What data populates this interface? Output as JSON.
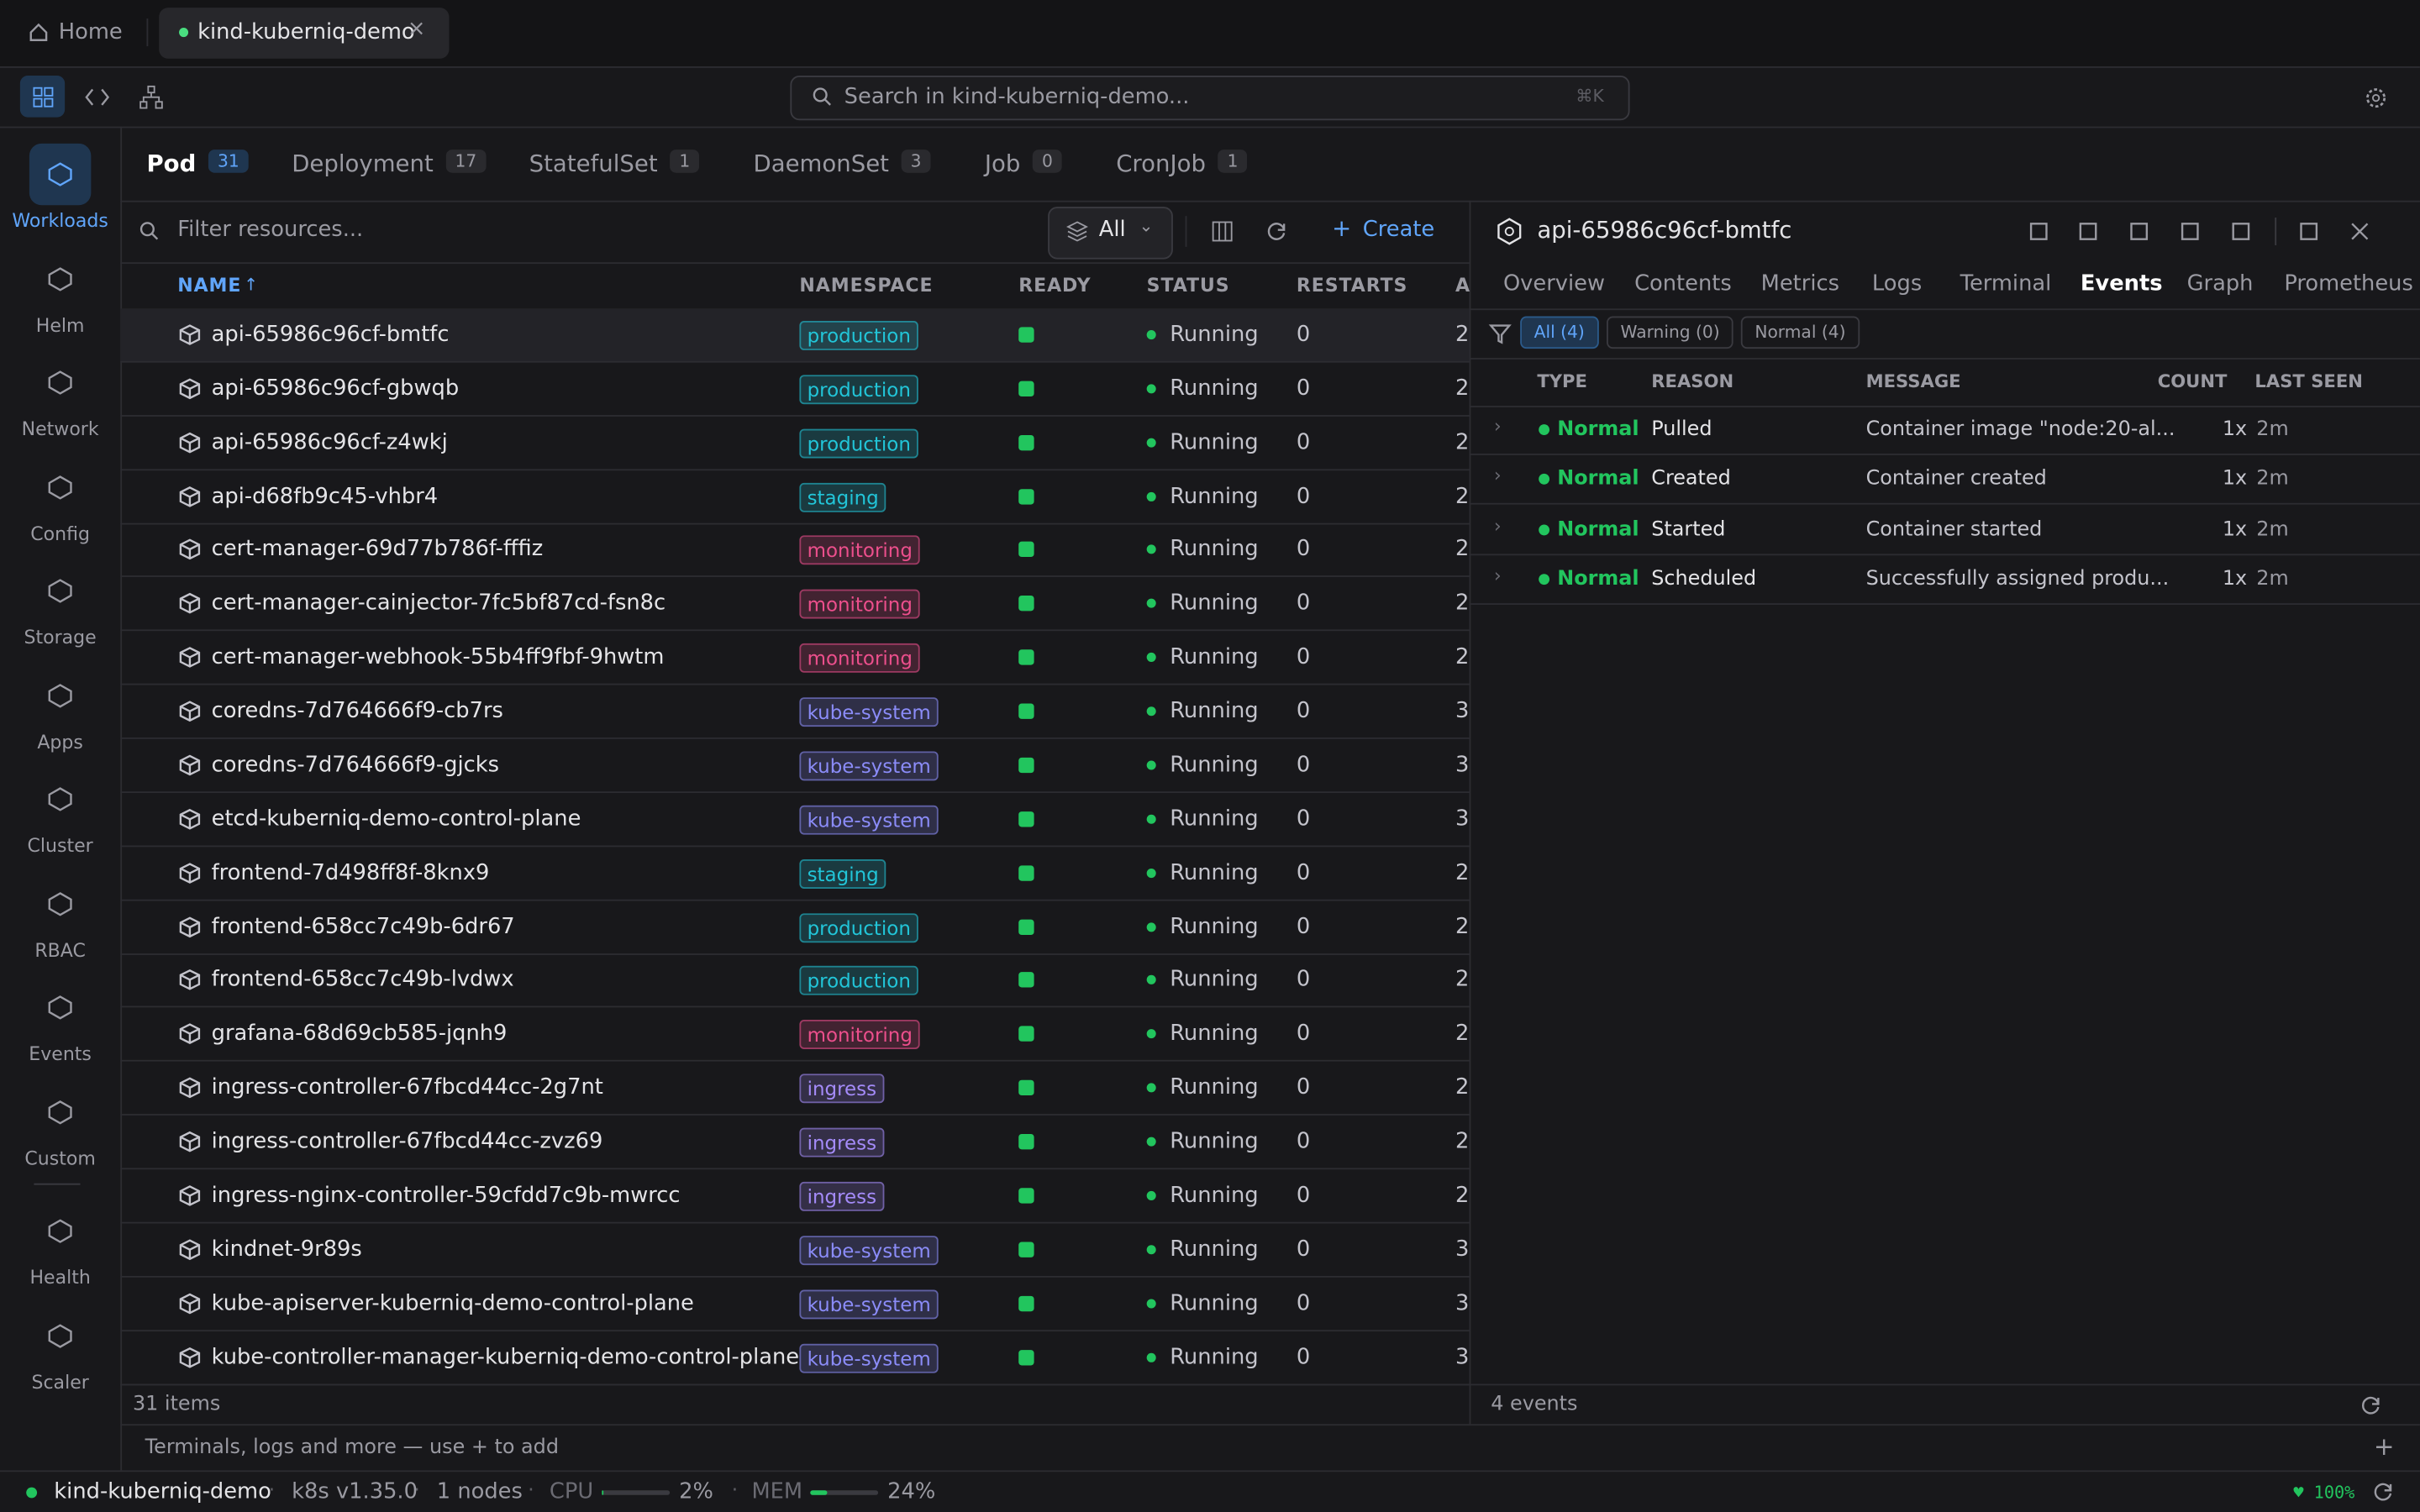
{
  "window_tabs": {
    "home": "Home",
    "active": "kind-kuberniq-demo"
  },
  "search": {
    "placeholder": "Search in kind-kuberniq-demo...",
    "shortcut": "⌘K"
  },
  "sidebar": [
    "Workloads",
    "Helm",
    "Network",
    "Config",
    "Storage",
    "Apps",
    "Cluster",
    "RBAC",
    "Events",
    "Custom",
    "Health",
    "Scaler"
  ],
  "resource_tabs": [
    {
      "label": "Pod",
      "count": 31
    },
    {
      "label": "Deployment",
      "count": 17
    },
    {
      "label": "StatefulSet",
      "count": 1
    },
    {
      "label": "DaemonSet",
      "count": 3
    },
    {
      "label": "Job",
      "count": 0
    },
    {
      "label": "CronJob",
      "count": 1
    }
  ],
  "resources": {
    "filter_placeholder": "Filter resources...",
    "scope": "All",
    "create": "Create",
    "columns": [
      "NAME",
      "NAMESPACE",
      "READY",
      "STATUS",
      "RESTARTS",
      "A"
    ],
    "rows": [
      {
        "name": "api-65986c96cf-bmtfc",
        "namespace": "production",
        "namespace_color": "#22c5d8",
        "status": "Running",
        "restarts": 0,
        "age": "2"
      },
      {
        "name": "api-65986c96cf-gbwqb",
        "namespace": "production",
        "namespace_color": "#22c5d8",
        "status": "Running",
        "restarts": 0,
        "age": "2"
      },
      {
        "name": "api-65986c96cf-z4wkj",
        "namespace": "production",
        "namespace_color": "#22c5d8",
        "status": "Running",
        "restarts": 0,
        "age": "2"
      },
      {
        "name": "api-d68fb9c45-vhbr4",
        "namespace": "staging",
        "namespace_color": "#22c5d8",
        "status": "Running",
        "restarts": 0,
        "age": "2"
      },
      {
        "name": "cert-manager-69d77b786f-fffiz",
        "namespace": "monitoring",
        "namespace_color": "#ec4f8c",
        "status": "Running",
        "restarts": 0,
        "age": "2"
      },
      {
        "name": "cert-manager-cainjector-7fc5bf87cd-fsn8c",
        "namespace": "monitoring",
        "namespace_color": "#ec4f8c",
        "status": "Running",
        "restarts": 0,
        "age": "2"
      },
      {
        "name": "cert-manager-webhook-55b4ff9fbf-9hwtm",
        "namespace": "monitoring",
        "namespace_color": "#ec4f8c",
        "status": "Running",
        "restarts": 0,
        "age": "2"
      },
      {
        "name": "coredns-7d764666f9-cb7rs",
        "namespace": "kube-system",
        "namespace_color": "#8b8cf8",
        "status": "Running",
        "restarts": 0,
        "age": "3"
      },
      {
        "name": "coredns-7d764666f9-gjcks",
        "namespace": "kube-system",
        "namespace_color": "#8b8cf8",
        "status": "Running",
        "restarts": 0,
        "age": "3"
      },
      {
        "name": "etcd-kuberniq-demo-control-plane",
        "namespace": "kube-system",
        "namespace_color": "#8b8cf8",
        "status": "Running",
        "restarts": 0,
        "age": "3"
      },
      {
        "name": "frontend-7d498ff8f-8knx9",
        "namespace": "staging",
        "namespace_color": "#22c5d8",
        "status": "Running",
        "restarts": 0,
        "age": "2"
      },
      {
        "name": "frontend-658cc7c49b-6dr67",
        "namespace": "production",
        "namespace_color": "#22c5d8",
        "status": "Running",
        "restarts": 0,
        "age": "2"
      },
      {
        "name": "frontend-658cc7c49b-lvdwx",
        "namespace": "production",
        "namespace_color": "#22c5d8",
        "status": "Running",
        "restarts": 0,
        "age": "2"
      },
      {
        "name": "grafana-68d69cb585-jqnh9",
        "namespace": "monitoring",
        "namespace_color": "#ec4f8c",
        "status": "Running",
        "restarts": 0,
        "age": "2"
      },
      {
        "name": "ingress-controller-67fbcd44cc-2g7nt",
        "namespace": "ingress",
        "namespace_color": "#a48bf8",
        "status": "Running",
        "restarts": 0,
        "age": "2"
      },
      {
        "name": "ingress-controller-67fbcd44cc-zvz69",
        "namespace": "ingress",
        "namespace_color": "#a48bf8",
        "status": "Running",
        "restarts": 0,
        "age": "2"
      },
      {
        "name": "ingress-nginx-controller-59cfdd7c9b-mwrcc",
        "namespace": "ingress",
        "namespace_color": "#a48bf8",
        "status": "Running",
        "restarts": 0,
        "age": "2"
      },
      {
        "name": "kindnet-9r89s",
        "namespace": "kube-system",
        "namespace_color": "#8b8cf8",
        "status": "Running",
        "restarts": 0,
        "age": "3"
      },
      {
        "name": "kube-apiserver-kuberniq-demo-control-plane",
        "namespace": "kube-system",
        "namespace_color": "#8b8cf8",
        "status": "Running",
        "restarts": 0,
        "age": "3"
      },
      {
        "name": "kube-controller-manager-kuberniq-demo-control-plane",
        "namespace": "kube-system",
        "namespace_color": "#8b8cf8",
        "status": "Running",
        "restarts": 0,
        "age": "3"
      }
    ],
    "footer": "31 items"
  },
  "details": {
    "title": "api-65986c96cf-bmtfc",
    "tabs": [
      "Overview",
      "Contents",
      "Metrics",
      "Logs",
      "Terminal",
      "Events",
      "Graph",
      "Prometheus"
    ],
    "active_tab": 5,
    "filters": [
      "All (4)",
      "Warning (0)",
      "Normal (4)"
    ],
    "columns": [
      "TYPE",
      "REASON",
      "MESSAGE",
      "COUNT",
      "LAST SEEN"
    ],
    "events": [
      {
        "type": "Normal",
        "reason": "Pulled",
        "message": "Container image \"node:20-al...",
        "count": "1x",
        "last_seen": "2m"
      },
      {
        "type": "Normal",
        "reason": "Created",
        "message": "Container created",
        "count": "1x",
        "last_seen": "2m"
      },
      {
        "type": "Normal",
        "reason": "Started",
        "message": "Container started",
        "count": "1x",
        "last_seen": "2m"
      },
      {
        "type": "Normal",
        "reason": "Scheduled",
        "message": "Successfully assigned produ...",
        "count": "1x",
        "last_seen": "2m"
      }
    ],
    "footer": "4 events"
  },
  "panel_hint": "Terminals, logs and more — use + to add",
  "status_bar": {
    "cluster": "kind-kuberniq-demo",
    "version": "k8s v1.35.0",
    "nodes": "1 nodes",
    "cpu_label": "CPU",
    "cpu": {
      "value": 2,
      "label": "2%"
    },
    "mem_label": "MEM",
    "mem": {
      "value": 24,
      "label": "24%"
    },
    "zoom": "♥ 100%"
  }
}
